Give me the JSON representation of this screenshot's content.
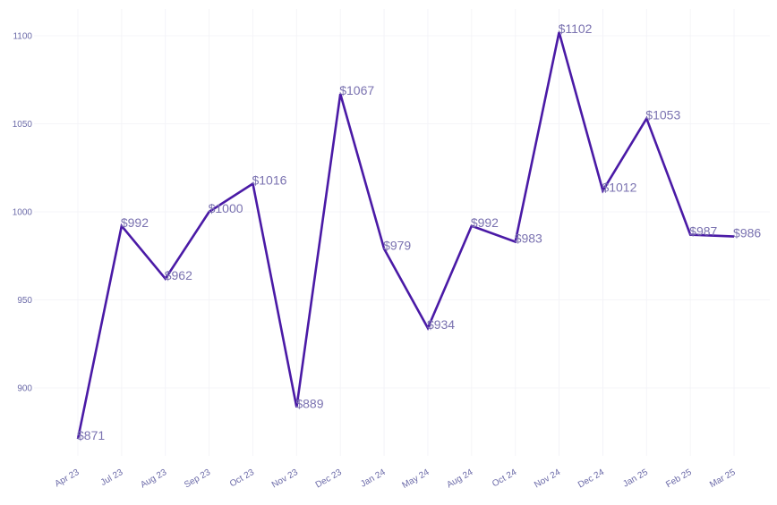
{
  "chart_data": {
    "type": "line",
    "title": "",
    "xlabel": "",
    "ylabel": "",
    "categories": [
      "Apr 23",
      "Jul 23",
      "Aug 23",
      "Sep 23",
      "Oct 23",
      "Nov 23",
      "Dec 23",
      "Jan 24",
      "May 24",
      "Aug 24",
      "Oct 24",
      "Nov 24",
      "Dec 24",
      "Jan 25",
      "Feb 25",
      "Mar 25"
    ],
    "values": [
      871,
      992,
      962,
      1000,
      1016,
      889,
      1067,
      979,
      934,
      992,
      983,
      1102,
      1012,
      1053,
      987,
      986
    ],
    "data_labels": [
      "$871",
      "$992",
      "$962",
      "$1000",
      "$1016",
      "$889",
      "$1067",
      "$979",
      "$934",
      "$992",
      "$983",
      "$1102",
      "$1012",
      "$1053",
      "$987",
      "$986"
    ],
    "yticks": [
      900,
      950,
      1000,
      1050,
      1100
    ],
    "ylim": [
      864,
      1104
    ],
    "grid": true,
    "legend": "none",
    "line_color": "#4a1aa6"
  }
}
